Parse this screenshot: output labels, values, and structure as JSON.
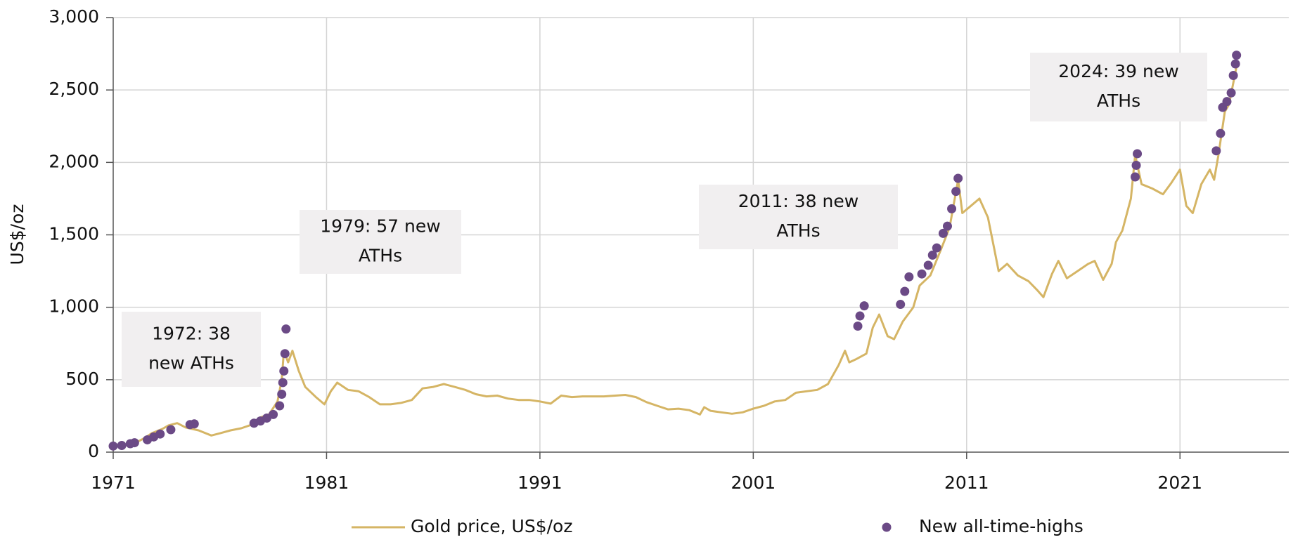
{
  "chart_data": {
    "type": "line",
    "ylabel": "US$/oz",
    "xlim": [
      1971,
      2026.1
    ],
    "ylim": [
      0,
      3000
    ],
    "xticks": [
      1971,
      1981,
      1991,
      2001,
      2011,
      2021
    ],
    "yticks": [
      0,
      500,
      {
        "value": 1000,
        "label": "1,000"
      },
      {
        "value": 1500,
        "label": "1,500"
      },
      {
        "value": 2000,
        "label": "2,000"
      },
      {
        "value": 2500,
        "label": "2,500"
      },
      {
        "value": 3000,
        "label": "3,000"
      }
    ],
    "grid": true,
    "series": [
      {
        "name": "Gold price, US$/oz",
        "color": "#d5b565",
        "type": "line",
        "x": [
          1971.0,
          1971.5,
          1972.0,
          1972.5,
          1972.8,
          1973.3,
          1973.6,
          1974.0,
          1974.4,
          1975.0,
          1975.6,
          1976.0,
          1976.5,
          1977.0,
          1977.5,
          1977.9,
          1978.3,
          1978.7,
          1978.9,
          1979.0,
          1979.2,
          1979.4,
          1979.7,
          1980.0,
          1980.5,
          1980.9,
          1981.2,
          1981.5,
          1982.0,
          1982.5,
          1983.0,
          1983.5,
          1984.0,
          1984.5,
          1985.0,
          1985.5,
          1986.0,
          1986.5,
          1987.0,
          1987.5,
          1988.0,
          1988.5,
          1989.0,
          1989.5,
          1990.0,
          1990.5,
          1991.0,
          1991.5,
          1992.0,
          1992.5,
          1993.0,
          1994.0,
          1995.0,
          1995.5,
          1996.0,
          1996.5,
          1997.0,
          1997.5,
          1998.0,
          1998.5,
          1998.7,
          1999.0,
          1999.5,
          2000.0,
          2000.5,
          2001.0,
          2001.5,
          2002.0,
          2002.5,
          2003.0,
          2003.5,
          2004.0,
          2004.5,
          2005.0,
          2005.3,
          2005.5,
          2005.8,
          2006.3,
          2006.6,
          2006.9,
          2007.3,
          2007.6,
          2008.0,
          2008.5,
          2008.8,
          2009.3,
          2009.8,
          2010.2,
          2010.6,
          2010.8,
          2011.2,
          2011.6,
          2012.0,
          2012.3,
          2012.5,
          2012.9,
          2013.4,
          2013.9,
          2014.3,
          2014.6,
          2015.0,
          2015.3,
          2015.7,
          2016.2,
          2016.7,
          2017.0,
          2017.4,
          2017.8,
          2018.0,
          2018.3,
          2018.7,
          2018.9,
          2019.2,
          2019.7,
          2020.2,
          2020.6,
          2021.0,
          2021.3,
          2021.6,
          2022.0,
          2022.4,
          2022.6,
          2022.8,
          2023.1,
          2023.3,
          2023.5,
          2023.7
        ],
        "values": [
          40,
          45,
          60,
          100,
          130,
          160,
          185,
          200,
          170,
          150,
          115,
          130,
          150,
          165,
          190,
          240,
          260,
          350,
          500,
          700,
          620,
          700,
          560,
          450,
          380,
          330,
          420,
          480,
          430,
          420,
          380,
          330,
          330,
          340,
          360,
          440,
          450,
          470,
          450,
          430,
          400,
          385,
          390,
          370,
          360,
          360,
          350,
          335,
          390,
          380,
          385,
          385,
          395,
          380,
          345,
          320,
          295,
          300,
          290,
          260,
          310,
          285,
          275,
          265,
          275,
          300,
          320,
          350,
          360,
          410,
          420,
          430,
          470,
          600,
          700,
          620,
          640,
          680,
          860,
          950,
          800,
          780,
          900,
          1000,
          1150,
          1220,
          1400,
          1550,
          1880,
          1650,
          1700,
          1750,
          1620,
          1400,
          1250,
          1300,
          1220,
          1180,
          1120,
          1070,
          1230,
          1320,
          1200,
          1250,
          1300,
          1320,
          1190,
          1300,
          1450,
          1530,
          1750,
          2050,
          1850,
          1820,
          1780,
          1860,
          1950,
          1700,
          1650,
          1850,
          1950,
          1880,
          2050,
          2350,
          2400,
          2550,
          2700
        ]
      },
      {
        "name": "New all-time-highs",
        "color": "#6b4a86",
        "type": "scatter",
        "x": [
          1971.0,
          1971.4,
          1971.8,
          1972.0,
          1972.6,
          1972.9,
          1973.2,
          1973.7,
          1974.6,
          1974.8,
          1977.6,
          1977.9,
          1978.2,
          1978.5,
          1978.8,
          1978.9,
          1978.95,
          1979.0,
          1979.05,
          1979.1,
          2005.9,
          2006.0,
          2006.2,
          2007.9,
          2008.1,
          2008.3,
          2008.9,
          2009.2,
          2009.4,
          2009.6,
          2009.9,
          2010.1,
          2010.3,
          2010.5,
          2010.6,
          2018.9,
          2018.95,
          2019.0,
          2022.7,
          2022.9,
          2023.0,
          2023.2,
          2023.4,
          2023.5,
          2023.6,
          2023.65
        ],
        "values": [
          42,
          46,
          58,
          65,
          85,
          105,
          125,
          155,
          190,
          195,
          200,
          215,
          235,
          260,
          320,
          400,
          480,
          560,
          680,
          850,
          870,
          940,
          1010,
          1020,
          1110,
          1210,
          1230,
          1290,
          1360,
          1410,
          1510,
          1560,
          1680,
          1800,
          1890,
          1900,
          1980,
          2060,
          2080,
          2200,
          2380,
          2420,
          2480,
          2600,
          2680,
          2740
        ]
      }
    ],
    "annotations": [
      {
        "text": [
          "1972: 38",
          "new ATHs"
        ]
      },
      {
        "text": [
          "1979: 57 new",
          "ATHs"
        ]
      },
      {
        "text": [
          "2011: 38 new",
          "ATHs"
        ]
      },
      {
        "text": [
          "2024: 39 new",
          "ATHs"
        ]
      }
    ]
  }
}
